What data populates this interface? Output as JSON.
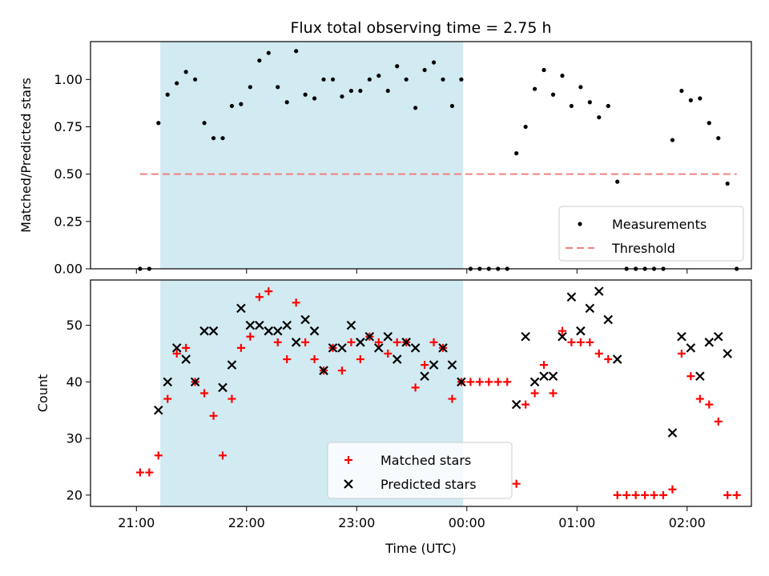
{
  "chart_data": [
    {
      "type": "scatter",
      "title": "Flux total observing time = 2.75 h",
      "ylabel": "Matched/Predicted stars",
      "ylim": [
        0,
        1.2
      ],
      "yticks": [
        "0.00",
        "0.25",
        "0.50",
        "0.75",
        "1.00"
      ],
      "xlim_minutes_from_2100": [
        -25,
        335
      ],
      "xtick_labels": [
        "21:00",
        "22:00",
        "23:00",
        "00:00",
        "01:00",
        "02:00"
      ],
      "highlight_span": [
        "21:13",
        "23:58"
      ],
      "highlight_color": "#add8e6",
      "legend_position": "lower right",
      "series": [
        {
          "name": "Measurements",
          "marker": "dot",
          "color": "#000000",
          "points": [
            [
              "21:02",
              0.0
            ],
            [
              "21:07",
              0.0
            ],
            [
              "21:12",
              0.77
            ],
            [
              "21:17",
              0.92
            ],
            [
              "21:22",
              0.98
            ],
            [
              "21:27",
              1.04
            ],
            [
              "21:32",
              1.0
            ],
            [
              "21:37",
              0.77
            ],
            [
              "21:42",
              0.69
            ],
            [
              "21:47",
              0.69
            ],
            [
              "21:52",
              0.86
            ],
            [
              "21:57",
              0.87
            ],
            [
              "22:02",
              0.96
            ],
            [
              "22:07",
              1.1
            ],
            [
              "22:12",
              1.14
            ],
            [
              "22:17",
              0.96
            ],
            [
              "22:22",
              0.88
            ],
            [
              "22:27",
              1.15
            ],
            [
              "22:32",
              0.92
            ],
            [
              "22:37",
              0.9
            ],
            [
              "22:42",
              1.0
            ],
            [
              "22:47",
              1.0
            ],
            [
              "22:52",
              0.91
            ],
            [
              "22:57",
              0.94
            ],
            [
              "23:02",
              0.94
            ],
            [
              "23:07",
              1.0
            ],
            [
              "23:12",
              1.02
            ],
            [
              "23:17",
              0.94
            ],
            [
              "23:22",
              1.07
            ],
            [
              "23:27",
              1.0
            ],
            [
              "23:32",
              0.85
            ],
            [
              "23:37",
              1.05
            ],
            [
              "23:42",
              1.09
            ],
            [
              "23:47",
              1.0
            ],
            [
              "23:52",
              0.86
            ],
            [
              "23:57",
              1.0
            ],
            [
              "00:02",
              0.0
            ],
            [
              "00:07",
              0.0
            ],
            [
              "00:12",
              0.0
            ],
            [
              "00:17",
              0.0
            ],
            [
              "00:22",
              0.0
            ],
            [
              "00:27",
              0.61
            ],
            [
              "00:32",
              0.75
            ],
            [
              "00:37",
              0.95
            ],
            [
              "00:42",
              1.05
            ],
            [
              "00:47",
              0.92
            ],
            [
              "00:52",
              1.02
            ],
            [
              "00:57",
              0.86
            ],
            [
              "01:02",
              0.96
            ],
            [
              "01:07",
              0.88
            ],
            [
              "01:12",
              0.8
            ],
            [
              "01:17",
              0.86
            ],
            [
              "01:22",
              0.46
            ],
            [
              "01:27",
              0.0
            ],
            [
              "01:32",
              0.0
            ],
            [
              "01:37",
              0.0
            ],
            [
              "01:42",
              0.0
            ],
            [
              "01:47",
              0.0
            ],
            [
              "01:52",
              0.68
            ],
            [
              "01:57",
              0.94
            ],
            [
              "02:02",
              0.89
            ],
            [
              "02:07",
              0.9
            ],
            [
              "02:12",
              0.77
            ],
            [
              "02:17",
              0.69
            ],
            [
              "02:22",
              0.45
            ],
            [
              "02:27",
              0.0
            ]
          ]
        },
        {
          "name": "Threshold",
          "type": "line",
          "style": "dashed",
          "color": "#f08080",
          "points": [
            [
              "21:02",
              0.5
            ],
            [
              "02:27",
              0.5
            ]
          ]
        }
      ]
    },
    {
      "type": "scatter",
      "title": "",
      "xlabel": "Time (UTC)",
      "ylabel": "Count",
      "ylim": [
        18,
        58
      ],
      "yticks": [
        "20",
        "30",
        "40",
        "50"
      ],
      "xlim_minutes_from_2100": [
        -25,
        335
      ],
      "xtick_labels": [
        "21:00",
        "22:00",
        "23:00",
        "00:00",
        "01:00",
        "02:00"
      ],
      "highlight_span": [
        "21:13",
        "23:58"
      ],
      "highlight_color": "#add8e6",
      "legend_position": "lower center",
      "series": [
        {
          "name": "Matched stars",
          "marker": "plus",
          "color": "#ff0000",
          "points": [
            [
              "21:02",
              24
            ],
            [
              "21:07",
              24
            ],
            [
              "21:12",
              27
            ],
            [
              "21:17",
              37
            ],
            [
              "21:22",
              45
            ],
            [
              "21:27",
              46
            ],
            [
              "21:32",
              40
            ],
            [
              "21:37",
              38
            ],
            [
              "21:42",
              34
            ],
            [
              "21:47",
              27
            ],
            [
              "21:52",
              37
            ],
            [
              "21:57",
              46
            ],
            [
              "22:02",
              48
            ],
            [
              "22:07",
              55
            ],
            [
              "22:12",
              56
            ],
            [
              "22:17",
              47
            ],
            [
              "22:22",
              44
            ],
            [
              "22:27",
              54
            ],
            [
              "22:32",
              47
            ],
            [
              "22:37",
              44
            ],
            [
              "22:42",
              42
            ],
            [
              "22:47",
              46
            ],
            [
              "22:52",
              42
            ],
            [
              "22:57",
              47
            ],
            [
              "23:02",
              44
            ],
            [
              "23:07",
              48
            ],
            [
              "23:12",
              47
            ],
            [
              "23:17",
              45
            ],
            [
              "23:22",
              47
            ],
            [
              "23:27",
              47
            ],
            [
              "23:32",
              39
            ],
            [
              "23:37",
              43
            ],
            [
              "23:42",
              47
            ],
            [
              "23:47",
              46
            ],
            [
              "23:52",
              37
            ],
            [
              "23:57",
              40
            ],
            [
              "00:02",
              40
            ],
            [
              "00:07",
              40
            ],
            [
              "00:12",
              40
            ],
            [
              "00:17",
              40
            ],
            [
              "00:22",
              40
            ],
            [
              "00:27",
              22
            ],
            [
              "00:32",
              36
            ],
            [
              "00:37",
              38
            ],
            [
              "00:42",
              43
            ],
            [
              "00:47",
              38
            ],
            [
              "00:52",
              49
            ],
            [
              "00:57",
              47
            ],
            [
              "01:02",
              47
            ],
            [
              "01:07",
              47
            ],
            [
              "01:12",
              45
            ],
            [
              "01:17",
              44
            ],
            [
              "01:22",
              20
            ],
            [
              "01:27",
              20
            ],
            [
              "01:32",
              20
            ],
            [
              "01:37",
              20
            ],
            [
              "01:42",
              20
            ],
            [
              "01:47",
              20
            ],
            [
              "01:52",
              21
            ],
            [
              "01:57",
              45
            ],
            [
              "02:02",
              41
            ],
            [
              "02:07",
              37
            ],
            [
              "02:12",
              36
            ],
            [
              "02:17",
              33
            ],
            [
              "02:22",
              20
            ],
            [
              "02:27",
              20
            ]
          ]
        },
        {
          "name": "Predicted stars",
          "marker": "x",
          "color": "#000000",
          "points": [
            [
              "21:12",
              35
            ],
            [
              "21:17",
              40
            ],
            [
              "21:22",
              46
            ],
            [
              "21:27",
              44
            ],
            [
              "21:32",
              40
            ],
            [
              "21:37",
              49
            ],
            [
              "21:42",
              49
            ],
            [
              "21:47",
              39
            ],
            [
              "21:52",
              43
            ],
            [
              "21:57",
              53
            ],
            [
              "22:02",
              50
            ],
            [
              "22:07",
              50
            ],
            [
              "22:12",
              49
            ],
            [
              "22:17",
              49
            ],
            [
              "22:22",
              50
            ],
            [
              "22:27",
              47
            ],
            [
              "22:32",
              51
            ],
            [
              "22:37",
              49
            ],
            [
              "22:42",
              42
            ],
            [
              "22:47",
              46
            ],
            [
              "22:52",
              46
            ],
            [
              "22:57",
              50
            ],
            [
              "23:02",
              47
            ],
            [
              "23:07",
              48
            ],
            [
              "23:12",
              46
            ],
            [
              "23:17",
              48
            ],
            [
              "23:22",
              44
            ],
            [
              "23:27",
              47
            ],
            [
              "23:32",
              46
            ],
            [
              "23:37",
              41
            ],
            [
              "23:42",
              43
            ],
            [
              "23:47",
              46
            ],
            [
              "23:52",
              43
            ],
            [
              "23:57",
              40
            ],
            [
              "00:27",
              36
            ],
            [
              "00:32",
              48
            ],
            [
              "00:37",
              40
            ],
            [
              "00:42",
              41
            ],
            [
              "00:47",
              41
            ],
            [
              "00:52",
              48
            ],
            [
              "00:57",
              55
            ],
            [
              "01:02",
              49
            ],
            [
              "01:07",
              53
            ],
            [
              "01:12",
              56
            ],
            [
              "01:17",
              51
            ],
            [
              "01:22",
              44
            ],
            [
              "01:52",
              31
            ],
            [
              "01:57",
              48
            ],
            [
              "02:02",
              46
            ],
            [
              "02:07",
              41
            ],
            [
              "02:12",
              47
            ],
            [
              "02:17",
              48
            ],
            [
              "02:22",
              45
            ]
          ]
        }
      ]
    }
  ]
}
